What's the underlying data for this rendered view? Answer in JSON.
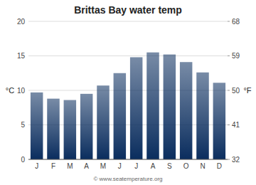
{
  "chart_data": {
    "type": "bar",
    "title": "Brittas Bay water temp",
    "categories": [
      "J",
      "F",
      "M",
      "A",
      "M",
      "J",
      "J",
      "A",
      "S",
      "O",
      "N",
      "D"
    ],
    "values": [
      9.7,
      8.8,
      8.6,
      9.5,
      10.7,
      12.5,
      14.8,
      15.5,
      15.2,
      14.1,
      12.6,
      11.1
    ],
    "color": "#0a2d5e",
    "y_label": "°C",
    "y2_label": "°F",
    "ylim": [
      0,
      20
    ],
    "yticks": [
      0,
      5,
      10,
      15,
      20
    ],
    "y2lim": [
      32,
      68
    ],
    "y2ticks": [
      32,
      41,
      50,
      59,
      68
    ],
    "grid": true,
    "annotations": [
      "© www.seatemperature.org"
    ]
  }
}
